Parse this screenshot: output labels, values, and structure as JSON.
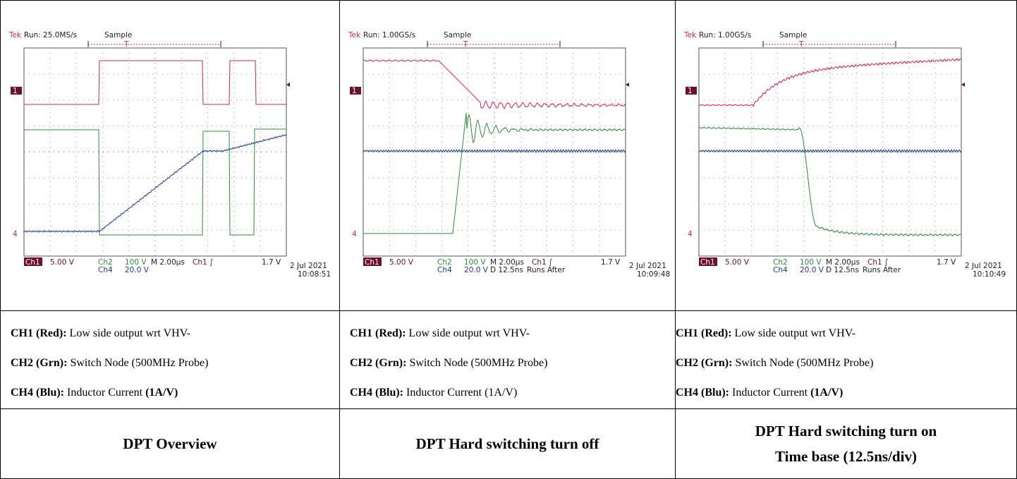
{
  "table": {
    "columns": [
      {
        "scope": {
          "brand": "Tek",
          "run": "Run: 25.0MS/s",
          "mode": "Sample",
          "trigger_marker": "T",
          "ch1_marker": "1",
          "ch4_marker": "4",
          "ch1_label": "Ch1",
          "ch1_scale": "5.00 V",
          "ch2_label": "Ch2",
          "ch2_scale": "100 V",
          "ch4_label": "Ch4",
          "ch4_scale": "20.0 V",
          "timebase": "M 2.00µs",
          "trigger": "Ch1 ∫",
          "trigger_level": "1.7 V",
          "date": "2 Jul 2021",
          "time": "10:08:51"
        },
        "channels": [
          {
            "label": "CH1 (Red):",
            "text": "Low side output wrt VHV-"
          },
          {
            "label": "CH2 (Grn):",
            "text": "Switch Node (500MHz Probe)"
          },
          {
            "label": "CH4 (Blu):",
            "text": "Inductor Current",
            "emphasis": "(1A/V)"
          }
        ],
        "caption": [
          "DPT Overview"
        ]
      },
      {
        "scope": {
          "brand": "Tek",
          "run": "Run: 1.00GS/s",
          "mode": "Sample",
          "trigger_marker": "T",
          "ch1_marker": "1",
          "ch4_marker": "4",
          "ch1_label": "Ch1",
          "ch1_scale": "5.00 V",
          "ch2_label": "Ch2",
          "ch2_scale": "100 V",
          "ch4_label": "Ch4",
          "ch4_scale": "20.0 V",
          "timebase": "M 2.00µs",
          "delay": "D 12.5ns",
          "run_mode": "Runs After",
          "trigger": "Ch1 ∫",
          "trigger_level": "1.7 V",
          "date": "2 Jul 2021",
          "time": "10:09:48"
        },
        "channels": [
          {
            "label": "CH1 (Red):",
            "text": "Low side output wrt VHV-"
          },
          {
            "label": "CH2 (Grn):",
            "text": "Switch Node (500MHz Probe)"
          },
          {
            "label": "CH4 (Blu):",
            "text": "Inductor Current (1A/V)"
          }
        ],
        "caption": [
          "DPT Hard switching turn off"
        ]
      },
      {
        "scope": {
          "brand": "Tek",
          "run": "Run: 1.00GS/s",
          "mode": "Sample",
          "trigger_marker": "T",
          "ch1_marker": "1",
          "ch4_marker": "4",
          "ch1_label": "Ch1",
          "ch1_scale": "5.00 V",
          "ch2_label": "Ch2",
          "ch2_scale": "100 V",
          "ch4_label": "Ch4",
          "ch4_scale": "20.0 V",
          "timebase": "M 2.00µs",
          "delay": "D 12.5ns",
          "run_mode": "Runs After",
          "trigger": "Ch1 ∫",
          "trigger_level": "1.7 V",
          "date": "2 Jul 2021",
          "time": "10:10:49"
        },
        "channels": [
          {
            "label": "CH1 (Red):",
            "text": "Low side output wrt VHV-"
          },
          {
            "label": "CH2 (Grn):",
            "text": "Switch Node (500MHz Probe)"
          },
          {
            "label": "CH4 (Blu):",
            "text": "Inductor Current",
            "emphasis": "(1A/V)"
          }
        ],
        "caption": [
          "DPT Hard switching turn on",
          "Time base (12.5ns/div)"
        ]
      }
    ]
  }
}
